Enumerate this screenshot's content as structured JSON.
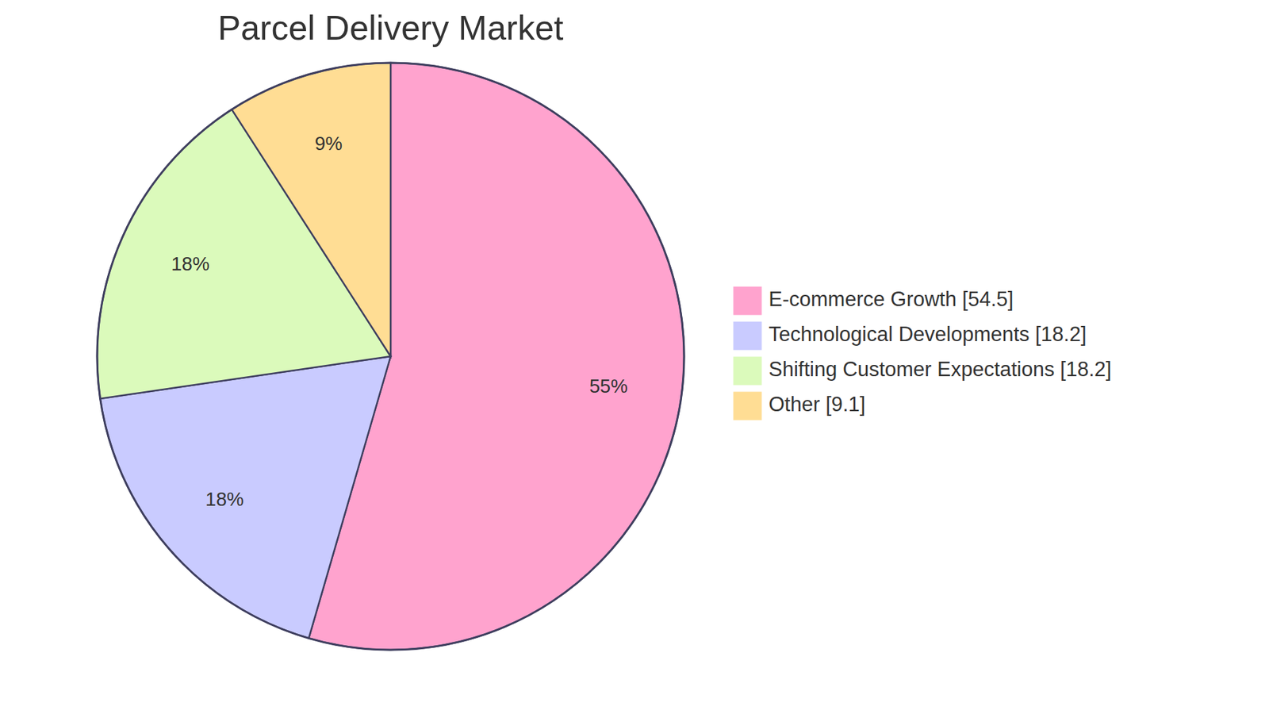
{
  "chart_data": {
    "type": "pie",
    "title": "Parcel Delivery Market",
    "categories": [
      "E-commerce Growth",
      "Technological Developments",
      "Shifting Customer Expectations",
      "Other"
    ],
    "values": [
      54.5,
      18.2,
      18.2,
      9.1
    ],
    "value_labels": [
      "55%",
      "18%",
      "18%",
      "9%"
    ],
    "colors": [
      "#ffa3ce",
      "#c9cbff",
      "#dbfabb",
      "#ffdd94"
    ],
    "data_labels": true,
    "legend": "right"
  }
}
